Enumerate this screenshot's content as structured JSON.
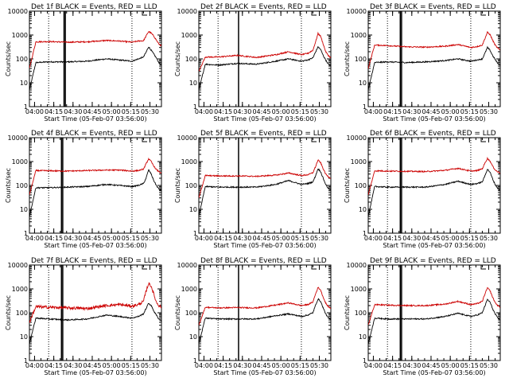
{
  "figure": {
    "background": "#ffffff",
    "event_color": "#000000",
    "lld_color": "#cc0000"
  },
  "chart_data": [
    {
      "type": "line",
      "title": "Det 1f BLACK = Events, RED = LLD",
      "xlabel": "Start Time (05-Feb-07 03:56:00)",
      "ylabel": "Counts/sec",
      "yscale": "log",
      "ylim": [
        1,
        10000
      ],
      "xlim": [
        "03:56:00",
        "05:39:00"
      ],
      "x_ticks": [
        "04:00",
        "04:15",
        "04:30",
        "04:45",
        "05:00",
        "05:15",
        "05:30"
      ],
      "y_ticks": [
        "1",
        "10",
        "100",
        "1000",
        "10000"
      ],
      "grid": false,
      "series": [
        {
          "name": "BLACK = Events",
          "color": "#000000",
          "x_minutes": [
            0,
            5,
            15,
            30,
            45,
            60,
            70,
            80,
            85,
            89,
            91,
            93,
            95,
            97,
            99,
            101,
            103
          ],
          "values": [
            5,
            70,
            75,
            75,
            80,
            100,
            90,
            80,
            100,
            120,
            190,
            320,
            230,
            160,
            110,
            70,
            55
          ]
        },
        {
          "name": "RED = LLD",
          "color": "#cc0000",
          "x_minutes": [
            0,
            5,
            15,
            30,
            45,
            60,
            70,
            80,
            85,
            89,
            91,
            93,
            95,
            97,
            99,
            101,
            103
          ],
          "values": [
            40,
            520,
            530,
            500,
            520,
            590,
            560,
            500,
            560,
            580,
            900,
            1400,
            1200,
            900,
            620,
            420,
            350
          ]
        }
      ],
      "vlines_dotted": [
        "04:11",
        "05:16"
      ],
      "vlines_solid": [
        "04:23",
        "04:24"
      ]
    },
    {
      "type": "line",
      "title": "Det 2f BLACK = Events, RED = LLD",
      "xlabel": "Start Time (05-Feb-07 03:56:00)",
      "ylabel": "Counts/sec",
      "yscale": "log",
      "ylim": [
        1,
        10000
      ],
      "xlim": [
        "03:56:00",
        "05:39:00"
      ],
      "x_ticks": [
        "04:00",
        "04:15",
        "04:30",
        "04:45",
        "05:00",
        "05:15",
        "05:30"
      ],
      "y_ticks": [
        "1",
        "10",
        "100",
        "1000",
        "10000"
      ],
      "grid": false,
      "series": [
        {
          "name": "BLACK = Events",
          "color": "#000000",
          "x_minutes": [
            0,
            5,
            15,
            30,
            45,
            60,
            70,
            80,
            85,
            89,
            91,
            93,
            95,
            97,
            99,
            101,
            103
          ],
          "values": [
            5,
            60,
            55,
            65,
            60,
            80,
            100,
            80,
            90,
            110,
            190,
            320,
            250,
            140,
            90,
            60,
            50
          ]
        },
        {
          "name": "RED = LLD",
          "color": "#cc0000",
          "x_minutes": [
            0,
            5,
            15,
            30,
            45,
            60,
            70,
            80,
            85,
            89,
            91,
            93,
            95,
            97,
            99,
            101,
            103
          ],
          "values": [
            30,
            120,
            120,
            140,
            115,
            150,
            200,
            150,
            170,
            230,
            500,
            1150,
            900,
            420,
            200,
            140,
            110
          ]
        }
      ],
      "vlines_dotted": [
        "04:11",
        "05:16"
      ],
      "vlines_solid": [
        "04:27"
      ]
    },
    {
      "type": "line",
      "title": "Det 3f BLACK = Events, RED = LLD",
      "xlabel": "Start Time (05-Feb-07 03:56:00)",
      "ylabel": "Counts/sec",
      "yscale": "log",
      "ylim": [
        1,
        10000
      ],
      "xlim": [
        "03:56:00",
        "05:39:00"
      ],
      "x_ticks": [
        "04:00",
        "04:15",
        "04:30",
        "04:45",
        "05:00",
        "05:15",
        "05:30"
      ],
      "y_ticks": [
        "1",
        "10",
        "100",
        "1000",
        "10000"
      ],
      "grid": false,
      "series": [
        {
          "name": "BLACK = Events",
          "color": "#000000",
          "x_minutes": [
            0,
            5,
            15,
            30,
            45,
            60,
            70,
            80,
            85,
            89,
            91,
            93,
            95,
            97,
            99,
            101,
            103
          ],
          "values": [
            5,
            70,
            75,
            70,
            75,
            85,
            100,
            80,
            90,
            100,
            170,
            300,
            230,
            140,
            95,
            65,
            55
          ]
        },
        {
          "name": "RED = LLD",
          "color": "#cc0000",
          "x_minutes": [
            0,
            5,
            15,
            30,
            45,
            60,
            70,
            80,
            85,
            89,
            91,
            93,
            95,
            97,
            99,
            101,
            103
          ],
          "values": [
            40,
            380,
            360,
            320,
            310,
            340,
            400,
            300,
            330,
            380,
            700,
            1300,
            1050,
            620,
            380,
            280,
            230
          ]
        }
      ],
      "vlines_dotted": [
        "04:11",
        "05:16"
      ],
      "vlines_solid": [
        "04:21",
        "04:22"
      ]
    },
    {
      "type": "line",
      "title": "Det 4f BLACK = Events, RED = LLD",
      "xlabel": "Start Time (05-Feb-07 03:56:00)",
      "ylabel": "Counts/sec",
      "yscale": "log",
      "ylim": [
        1,
        10000
      ],
      "xlim": [
        "03:56:00",
        "05:39:00"
      ],
      "x_ticks": [
        "04:00",
        "04:15",
        "04:30",
        "04:45",
        "05:00",
        "05:15",
        "05:30"
      ],
      "y_ticks": [
        "1",
        "10",
        "100",
        "1000",
        "10000"
      ],
      "grid": false,
      "series": [
        {
          "name": "BLACK = Events",
          "color": "#000000",
          "x_minutes": [
            0,
            5,
            15,
            30,
            45,
            60,
            70,
            80,
            85,
            89,
            91,
            93,
            95,
            97,
            99,
            101,
            103
          ],
          "values": [
            5,
            80,
            80,
            85,
            90,
            110,
            100,
            90,
            100,
            120,
            200,
            450,
            300,
            160,
            100,
            70,
            60
          ]
        },
        {
          "name": "RED = LLD",
          "color": "#cc0000",
          "x_minutes": [
            0,
            5,
            15,
            30,
            45,
            60,
            70,
            80,
            85,
            89,
            91,
            93,
            95,
            97,
            99,
            101,
            103
          ],
          "values": [
            40,
            420,
            410,
            400,
            420,
            440,
            440,
            400,
            420,
            480,
            800,
            1300,
            1000,
            650,
            460,
            380,
            330
          ]
        }
      ],
      "vlines_dotted": [
        "04:11",
        "05:16"
      ],
      "vlines_solid": [
        "04:21",
        "04:22"
      ]
    },
    {
      "type": "line",
      "title": "Det 5f BLACK = Events, RED = LLD",
      "xlabel": "Start Time (05-Feb-07 03:56:00)",
      "ylabel": "Counts/sec",
      "yscale": "log",
      "ylim": [
        1,
        10000
      ],
      "xlim": [
        "03:56:00",
        "05:39:00"
      ],
      "x_ticks": [
        "04:00",
        "04:15",
        "04:30",
        "04:45",
        "05:00",
        "05:15",
        "05:30"
      ],
      "y_ticks": [
        "1",
        "10",
        "100",
        "1000",
        "10000"
      ],
      "grid": false,
      "series": [
        {
          "name": "BLACK = Events",
          "color": "#000000",
          "x_minutes": [
            0,
            5,
            15,
            30,
            45,
            60,
            70,
            80,
            85,
            89,
            91,
            93,
            95,
            97,
            99,
            101,
            103
          ],
          "values": [
            5,
            90,
            85,
            85,
            85,
            110,
            160,
            110,
            120,
            140,
            250,
            500,
            380,
            200,
            110,
            75,
            65
          ]
        },
        {
          "name": "RED = LLD",
          "color": "#cc0000",
          "x_minutes": [
            0,
            5,
            15,
            30,
            45,
            60,
            70,
            80,
            85,
            89,
            91,
            93,
            95,
            97,
            99,
            101,
            103
          ],
          "values": [
            30,
            260,
            250,
            250,
            240,
            270,
            330,
            260,
            280,
            340,
            600,
            1150,
            900,
            500,
            300,
            230,
            200
          ]
        }
      ],
      "vlines_dotted": [
        "04:11",
        "05:16"
      ],
      "vlines_solid": [
        "04:27"
      ]
    },
    {
      "type": "line",
      "title": "Det 6f BLACK = Events, RED = LLD",
      "xlabel": "Start Time (05-Feb-07 03:56:00)",
      "ylabel": "Counts/sec",
      "yscale": "log",
      "ylim": [
        1,
        10000
      ],
      "xlim": [
        "03:56:00",
        "05:39:00"
      ],
      "x_ticks": [
        "04:00",
        "04:15",
        "04:30",
        "04:45",
        "05:00",
        "05:15",
        "05:30"
      ],
      "y_ticks": [
        "1",
        "10",
        "100",
        "1000",
        "10000"
      ],
      "grid": false,
      "series": [
        {
          "name": "BLACK = Events",
          "color": "#000000",
          "x_minutes": [
            0,
            5,
            15,
            30,
            45,
            60,
            70,
            80,
            85,
            89,
            91,
            93,
            95,
            97,
            99,
            101,
            103
          ],
          "values": [
            5,
            90,
            85,
            85,
            85,
            110,
            150,
            110,
            120,
            140,
            250,
            480,
            360,
            190,
            110,
            75,
            65
          ]
        },
        {
          "name": "RED = LLD",
          "color": "#cc0000",
          "x_minutes": [
            0,
            5,
            15,
            30,
            45,
            60,
            70,
            80,
            85,
            89,
            91,
            93,
            95,
            97,
            99,
            101,
            103
          ],
          "values": [
            40,
            410,
            400,
            390,
            380,
            430,
            520,
            400,
            420,
            500,
            850,
            1350,
            1050,
            650,
            450,
            370,
            330
          ]
        }
      ],
      "vlines_dotted": [
        "04:11",
        "05:16"
      ],
      "vlines_solid": [
        "04:21",
        "04:22"
      ]
    },
    {
      "type": "line",
      "title": "Det 7f BLACK = Events, RED = LLD",
      "xlabel": "Start Time (05-Feb-07 03:56:00)",
      "ylabel": "Counts/sec",
      "yscale": "log",
      "ylim": [
        1,
        10000
      ],
      "xlim": [
        "03:56:00",
        "05:39:00"
      ],
      "x_ticks": [
        "04:00",
        "04:15",
        "04:30",
        "04:45",
        "05:00",
        "05:15",
        "05:30"
      ],
      "y_ticks": [
        "1",
        "10",
        "100",
        "1000",
        "10000"
      ],
      "grid": false,
      "series": [
        {
          "name": "BLACK = Events",
          "color": "#000000",
          "x_minutes": [
            0,
            5,
            15,
            30,
            45,
            60,
            70,
            80,
            85,
            89,
            91,
            93,
            95,
            97,
            99,
            101,
            103
          ],
          "values": [
            5,
            60,
            55,
            50,
            55,
            80,
            70,
            60,
            70,
            90,
            150,
            250,
            200,
            120,
            80,
            55,
            45
          ]
        },
        {
          "name": "RED = LLD",
          "color": "#cc0000",
          "x_minutes": [
            0,
            5,
            15,
            30,
            45,
            60,
            70,
            80,
            85,
            89,
            91,
            93,
            95,
            97,
            99,
            101,
            103
          ],
          "values": [
            40,
            180,
            170,
            160,
            150,
            200,
            220,
            190,
            220,
            300,
            800,
            1700,
            1300,
            600,
            280,
            200,
            170
          ]
        }
      ],
      "vlines_dotted": [
        "04:11",
        "05:16"
      ],
      "vlines_solid": [
        "04:21",
        "04:22"
      ]
    },
    {
      "type": "line",
      "title": "Det 8f BLACK = Events, RED = LLD",
      "xlabel": "Start Time (05-Feb-07 03:56:00)",
      "ylabel": "Counts/sec",
      "yscale": "log",
      "ylim": [
        1,
        10000
      ],
      "xlim": [
        "03:56:00",
        "05:39:00"
      ],
      "x_ticks": [
        "04:00",
        "04:15",
        "04:30",
        "04:45",
        "05:00",
        "05:15",
        "05:30"
      ],
      "y_ticks": [
        "1",
        "10",
        "100",
        "1000",
        "10000"
      ],
      "grid": false,
      "series": [
        {
          "name": "BLACK = Events",
          "color": "#000000",
          "x_minutes": [
            0,
            5,
            15,
            30,
            45,
            60,
            70,
            80,
            85,
            89,
            91,
            93,
            95,
            97,
            99,
            101,
            103
          ],
          "values": [
            5,
            60,
            55,
            55,
            55,
            75,
            90,
            70,
            80,
            100,
            200,
            380,
            300,
            160,
            90,
            60,
            50
          ]
        },
        {
          "name": "RED = LLD",
          "color": "#cc0000",
          "x_minutes": [
            0,
            5,
            15,
            30,
            45,
            60,
            70,
            80,
            85,
            89,
            91,
            93,
            95,
            97,
            99,
            101,
            103
          ],
          "values": [
            30,
            170,
            160,
            165,
            160,
            210,
            260,
            200,
            220,
            280,
            600,
            1150,
            900,
            450,
            250,
            180,
            150
          ]
        }
      ],
      "vlines_dotted": [
        "04:11",
        "05:16"
      ],
      "vlines_solid": [
        "04:27"
      ]
    },
    {
      "type": "line",
      "title": "Det 9f BLACK = Events, RED = LLD",
      "xlabel": "Start Time (05-Feb-07 03:56:00)",
      "ylabel": "Counts/sec",
      "yscale": "log",
      "ylim": [
        1,
        10000
      ],
      "xlim": [
        "03:56:00",
        "05:39:00"
      ],
      "x_ticks": [
        "04:00",
        "04:15",
        "04:30",
        "04:45",
        "05:00",
        "05:15",
        "05:30"
      ],
      "y_ticks": [
        "1",
        "10",
        "100",
        "1000",
        "10000"
      ],
      "grid": false,
      "series": [
        {
          "name": "BLACK = Events",
          "color": "#000000",
          "x_minutes": [
            0,
            5,
            15,
            30,
            45,
            60,
            70,
            80,
            85,
            89,
            91,
            93,
            95,
            97,
            99,
            101,
            103
          ],
          "values": [
            5,
            60,
            55,
            55,
            55,
            70,
            95,
            70,
            80,
            100,
            190,
            360,
            280,
            150,
            90,
            60,
            50
          ]
        },
        {
          "name": "RED = LLD",
          "color": "#cc0000",
          "x_minutes": [
            0,
            5,
            15,
            30,
            45,
            60,
            70,
            80,
            85,
            89,
            91,
            93,
            95,
            97,
            99,
            101,
            103
          ],
          "values": [
            30,
            220,
            210,
            200,
            200,
            230,
            300,
            220,
            240,
            300,
            600,
            1100,
            850,
            450,
            270,
            200,
            170
          ]
        }
      ],
      "vlines_dotted": [
        "04:11",
        "05:16"
      ],
      "vlines_solid": [
        "04:21",
        "04:22"
      ]
    }
  ]
}
